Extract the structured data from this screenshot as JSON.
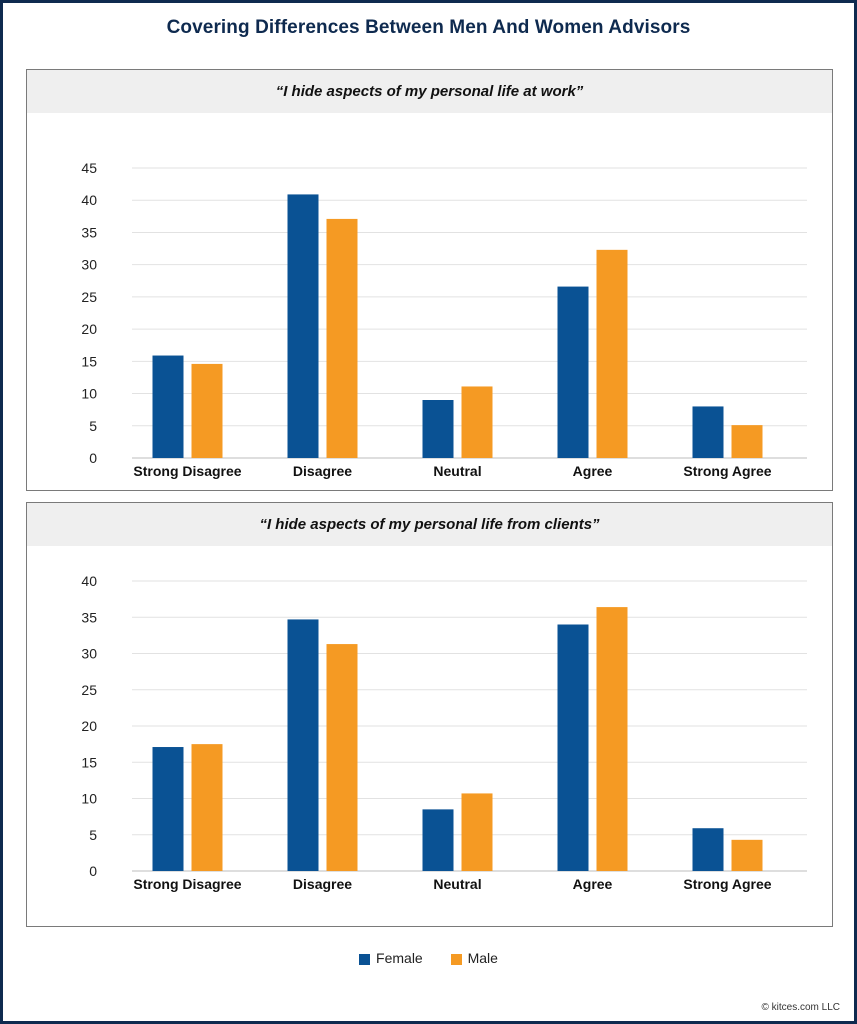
{
  "title": "Covering Differences Between Men And Women Advisors",
  "footer": "© kitces.com LLC",
  "colors": {
    "female": "#0a5294",
    "male": "#f59a23",
    "frame": "#0e2a4f",
    "panel_header": "#efefef"
  },
  "legend": [
    {
      "label": "Female",
      "color": "#0a5294"
    },
    {
      "label": "Male",
      "color": "#f59a23"
    }
  ],
  "chart_data": [
    {
      "type": "bar",
      "title": "“I hide aspects of my personal life at work”",
      "categories": [
        "Strong Disagree",
        "Disagree",
        "Neutral",
        "Agree",
        "Strong Agree"
      ],
      "series": [
        {
          "name": "Female",
          "values": [
            15.9,
            40.9,
            9.0,
            26.6,
            8.0
          ]
        },
        {
          "name": "Male",
          "values": [
            14.6,
            37.1,
            11.1,
            32.3,
            5.1
          ]
        }
      ],
      "ylim": [
        0,
        45
      ],
      "yticks": [
        0,
        5,
        10,
        15,
        20,
        25,
        30,
        35,
        40,
        45
      ],
      "grid": true,
      "legend": "bottom-center"
    },
    {
      "type": "bar",
      "title": "“I hide aspects of my personal life from clients”",
      "categories": [
        "Strong Disagree",
        "Disagree",
        "Neutral",
        "Agree",
        "Strong Agree"
      ],
      "series": [
        {
          "name": "Female",
          "values": [
            17.1,
            34.7,
            8.5,
            34.0,
            5.9
          ]
        },
        {
          "name": "Male",
          "values": [
            17.5,
            31.3,
            10.7,
            36.4,
            4.3
          ]
        }
      ],
      "ylim": [
        0,
        40
      ],
      "yticks": [
        0,
        5,
        10,
        15,
        20,
        25,
        30,
        35,
        40
      ],
      "grid": true,
      "legend": "bottom-center"
    }
  ]
}
